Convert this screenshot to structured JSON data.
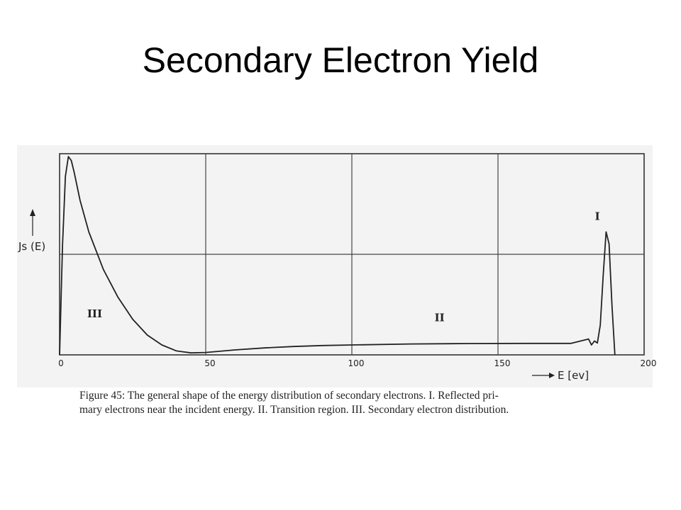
{
  "slide": {
    "title": "Secondary Electron Yield"
  },
  "caption": {
    "line1": "Figure 45:  The general shape of the energy distribution of secondary electrons.  I. Reflected pri-",
    "line2": "mary electrons near the incident energy. II. Transition region.  III. Secondary electron distribution."
  },
  "chart_data": {
    "type": "line",
    "ylabel": "Js (E)",
    "xlabel": "E [ev]",
    "xlim": [
      0,
      200
    ],
    "x_ticks": [
      "0",
      "50",
      "100",
      "150",
      "200"
    ],
    "grid": true,
    "line_color": "#222222",
    "series": [
      {
        "x": [
          0,
          1,
          2,
          3,
          4,
          5,
          7,
          10,
          15,
          20,
          25,
          30,
          35,
          40,
          45,
          50,
          60,
          70,
          80,
          90,
          100,
          120,
          140,
          160,
          175,
          181,
          182,
          183,
          184,
          185,
          186,
          187,
          188,
          189,
          190
        ],
        "y": [
          0,
          0.55,
          0.9,
          1.0,
          0.98,
          0.92,
          0.78,
          0.62,
          0.43,
          0.29,
          0.18,
          0.1,
          0.05,
          0.02,
          0.01,
          0.012,
          0.025,
          0.035,
          0.042,
          0.047,
          0.05,
          0.055,
          0.057,
          0.058,
          0.058,
          0.08,
          0.05,
          0.07,
          0.06,
          0.15,
          0.4,
          0.62,
          0.56,
          0.25,
          0
        ]
      }
    ],
    "annotations": [
      {
        "text": "I",
        "x": 184,
        "y": 0.68
      },
      {
        "text": "II",
        "x": 130,
        "y": 0.17
      },
      {
        "text": "III",
        "x": 12,
        "y": 0.19
      }
    ]
  }
}
